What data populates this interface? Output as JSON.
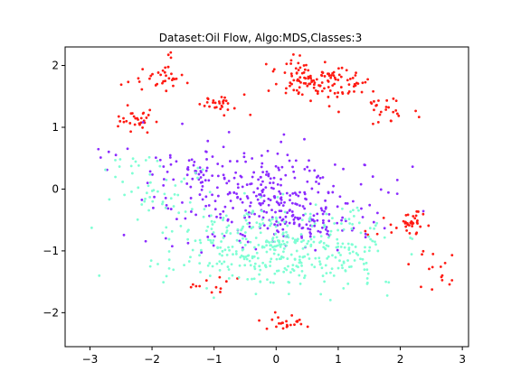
{
  "title": "Dataset:Oil Flow, Algo:MDS,Classes:3",
  "chart_data": {
    "type": "scatter",
    "title": "Dataset:Oil Flow, Algo:MDS,Classes:3",
    "xlabel": "",
    "ylabel": "",
    "xlim": [
      -3.4,
      3.1
    ],
    "ylim": [
      -2.55,
      2.3
    ],
    "xticks": [
      -3,
      -2,
      -1,
      0,
      1,
      2,
      3
    ],
    "yticks": [
      -2,
      -1,
      0,
      1,
      2
    ],
    "grid": false,
    "legend": "none",
    "marker_size": 1.4,
    "series": [
      {
        "color": "#ff1a12",
        "clusters": [
          {
            "center": [
              0.67,
              1.72
            ],
            "spread": [
              0.36,
              0.13
            ],
            "count": 105
          },
          {
            "center": [
              0.32,
              1.96
            ],
            "spread": [
              0.18,
              0.07
            ],
            "count": 18
          },
          {
            "center": [
              -1.85,
              1.78
            ],
            "spread": [
              0.22,
              0.09
            ],
            "count": 26
          },
          {
            "center": [
              -1.7,
              1.98
            ],
            "spread": [
              0.05,
              0.14
            ],
            "count": 7
          },
          {
            "center": [
              -2.2,
              1.15
            ],
            "spread": [
              0.18,
              0.08
            ],
            "count": 28
          },
          {
            "center": [
              -0.9,
              1.38
            ],
            "spread": [
              0.2,
              0.08
            ],
            "count": 28
          },
          {
            "center": [
              1.78,
              1.3
            ],
            "spread": [
              0.16,
              0.11
            ],
            "count": 24
          },
          {
            "center": [
              2.18,
              -0.52
            ],
            "spread": [
              0.11,
              0.13
            ],
            "count": 34
          },
          {
            "center": [
              2.5,
              -1.22
            ],
            "spread": [
              0.18,
              0.16
            ],
            "count": 12
          },
          {
            "center": [
              0.05,
              -2.16
            ],
            "spread": [
              0.22,
              0.06
            ],
            "count": 24
          },
          {
            "center": [
              -1.0,
              -1.58
            ],
            "spread": [
              0.22,
              0.09
            ],
            "count": 12
          },
          {
            "center": [
              1.7,
              -0.75
            ],
            "spread": [
              0.1,
              0.12
            ],
            "count": 4
          },
          {
            "center": [
              -2.45,
              1.72
            ],
            "spread": [
              0.04,
              0.04
            ],
            "count": 2
          },
          {
            "center": [
              -2.55,
              1.07
            ],
            "spread": [
              0.04,
              0.04
            ],
            "count": 2
          },
          {
            "center": [
              2.28,
              1.18
            ],
            "spread": [
              0.04,
              0.04
            ],
            "count": 2
          },
          {
            "center": [
              0.62,
              1.48
            ],
            "spread": [
              0.05,
              0.05
            ],
            "count": 3
          },
          {
            "center": [
              2.75,
              -1.46
            ],
            "spread": [
              0.05,
              0.06
            ],
            "count": 4
          }
        ]
      },
      {
        "color": "#8b2bff",
        "clusters": [
          {
            "center": [
              -0.15,
              -0.15
            ],
            "spread": [
              0.85,
              0.38
            ],
            "count": 300
          },
          {
            "center": [
              0.75,
              -0.58
            ],
            "spread": [
              0.42,
              0.2
            ],
            "count": 55
          },
          {
            "center": [
              -1.3,
              0.28
            ],
            "spread": [
              0.45,
              0.18
            ],
            "count": 40
          },
          {
            "center": [
              -2.6,
              0.58
            ],
            "spread": [
              0.15,
              0.05
            ],
            "count": 4
          }
        ]
      },
      {
        "color": "#7fffd4",
        "clusters": [
          {
            "center": [
              -0.2,
              -0.9
            ],
            "spread": [
              0.8,
              0.32
            ],
            "count": 300
          },
          {
            "center": [
              0.75,
              -1.12
            ],
            "spread": [
              0.55,
              0.25
            ],
            "count": 100
          },
          {
            "center": [
              -1.75,
              -0.1
            ],
            "spread": [
              0.45,
              0.25
            ],
            "count": 40
          },
          {
            "center": [
              -2.4,
              0.42
            ],
            "spread": [
              0.18,
              0.12
            ],
            "count": 12
          },
          {
            "center": [
              1.4,
              -0.7
            ],
            "spread": [
              0.18,
              0.2
            ],
            "count": 12
          }
        ]
      }
    ]
  }
}
